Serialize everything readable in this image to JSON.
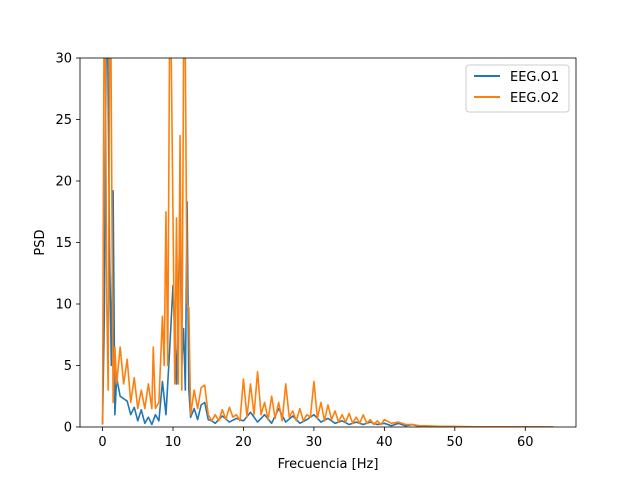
{
  "chart_data": {
    "type": "line",
    "title": "",
    "xlabel": "Frecuencia [Hz]",
    "ylabel": "PSD",
    "xlim": [
      -3.2,
      67.2
    ],
    "ylim": [
      0,
      30
    ],
    "xticks": [
      0,
      10,
      20,
      30,
      40,
      50,
      60
    ],
    "yticks": [
      0,
      5,
      10,
      15,
      20,
      25,
      30
    ],
    "grid": false,
    "legend": {
      "placement": "top-right"
    },
    "series": [
      {
        "name": "EEG.O1",
        "color": "#1f77b4",
        "points": [
          [
            0.0,
            0.2
          ],
          [
            0.25,
            9
          ],
          [
            0.5,
            30
          ],
          [
            0.75,
            30
          ],
          [
            1.0,
            14
          ],
          [
            1.25,
            5
          ],
          [
            1.5,
            19.2
          ],
          [
            1.75,
            1.0
          ],
          [
            2.0,
            4.0
          ],
          [
            2.5,
            2.5
          ],
          [
            3.0,
            2.3
          ],
          [
            3.5,
            2.1
          ],
          [
            4.0,
            1.0
          ],
          [
            4.5,
            1.6
          ],
          [
            5.0,
            0.5
          ],
          [
            5.5,
            1.4
          ],
          [
            6.0,
            0.3
          ],
          [
            6.5,
            0.8
          ],
          [
            7.0,
            0.2
          ],
          [
            7.5,
            1.0
          ],
          [
            8.0,
            0.5
          ],
          [
            8.5,
            3.7
          ],
          [
            9.0,
            1.0
          ],
          [
            9.5,
            6.0
          ],
          [
            10.0,
            11.5
          ],
          [
            10.5,
            3.5
          ],
          [
            11.0,
            17.0
          ],
          [
            11.25,
            5
          ],
          [
            11.5,
            8.0
          ],
          [
            11.75,
            3.0
          ],
          [
            12.0,
            18.3
          ],
          [
            12.25,
            3.0
          ],
          [
            12.5,
            0.8
          ],
          [
            13.0,
            1.5
          ],
          [
            13.5,
            0.6
          ],
          [
            14.0,
            1.8
          ],
          [
            14.5,
            2.0
          ],
          [
            15.0,
            0.6
          ],
          [
            15.5,
            0.5
          ],
          [
            16.0,
            0.3
          ],
          [
            17.0,
            0.9
          ],
          [
            18.0,
            0.4
          ],
          [
            19.0,
            0.7
          ],
          [
            20.0,
            0.5
          ],
          [
            21.0,
            1.2
          ],
          [
            22.0,
            0.4
          ],
          [
            23.0,
            1.0
          ],
          [
            24.0,
            0.3
          ],
          [
            25.0,
            1.5
          ],
          [
            26.0,
            0.4
          ],
          [
            27.0,
            0.9
          ],
          [
            28.0,
            0.3
          ],
          [
            29.0,
            0.6
          ],
          [
            30.0,
            1.0
          ],
          [
            31.0,
            0.4
          ],
          [
            32.0,
            0.7
          ],
          [
            33.0,
            0.3
          ],
          [
            34.0,
            0.5
          ],
          [
            35.0,
            0.2
          ],
          [
            36.0,
            0.4
          ],
          [
            37.0,
            0.2
          ],
          [
            38.0,
            0.4
          ],
          [
            39.0,
            0.2
          ],
          [
            40.0,
            0.3
          ],
          [
            41.0,
            0.1
          ],
          [
            42.0,
            0.3
          ],
          [
            43.0,
            0.1
          ],
          [
            44.0,
            0.2
          ],
          [
            45.0,
            0.05
          ],
          [
            48.0,
            0.03
          ],
          [
            52.0,
            0.02
          ],
          [
            56.0,
            0.01
          ],
          [
            60.0,
            0.01
          ],
          [
            64.0,
            0.0
          ]
        ]
      },
      {
        "name": "EEG.O2",
        "color": "#ff7f0e",
        "points": [
          [
            0.0,
            0.2
          ],
          [
            0.2,
            30
          ],
          [
            0.4,
            30
          ],
          [
            0.6,
            10
          ],
          [
            0.8,
            3
          ],
          [
            1.0,
            30
          ],
          [
            1.2,
            30
          ],
          [
            1.5,
            2.0
          ],
          [
            1.75,
            6.5
          ],
          [
            2.0,
            3.5
          ],
          [
            2.5,
            6.5
          ],
          [
            3.0,
            3.5
          ],
          [
            3.5,
            5.5
          ],
          [
            4.0,
            2.0
          ],
          [
            4.5,
            4.0
          ],
          [
            5.0,
            1.5
          ],
          [
            5.5,
            3.0
          ],
          [
            6.0,
            1.5
          ],
          [
            6.5,
            3.5
          ],
          [
            7.0,
            1.5
          ],
          [
            7.2,
            6.5
          ],
          [
            7.5,
            1.5
          ],
          [
            8.0,
            2.0
          ],
          [
            8.5,
            9.0
          ],
          [
            8.75,
            5
          ],
          [
            9.0,
            17.5
          ],
          [
            9.25,
            5
          ],
          [
            9.5,
            30
          ],
          [
            9.75,
            30
          ],
          [
            10.0,
            17.2
          ],
          [
            10.25,
            3.5
          ],
          [
            10.5,
            17.0
          ],
          [
            10.75,
            3.5
          ],
          [
            11.0,
            23.7
          ],
          [
            11.25,
            3.0
          ],
          [
            11.5,
            30
          ],
          [
            11.75,
            30
          ],
          [
            12.0,
            10.0
          ],
          [
            12.25,
            9.7
          ],
          [
            12.5,
            1.0
          ],
          [
            13.0,
            3.0
          ],
          [
            13.5,
            1.5
          ],
          [
            14.0,
            3.2
          ],
          [
            14.5,
            3.4
          ],
          [
            15.0,
            1.0
          ],
          [
            15.5,
            0.5
          ],
          [
            16.0,
            1.0
          ],
          [
            16.5,
            0.5
          ],
          [
            17.0,
            1.4
          ],
          [
            17.5,
            0.6
          ],
          [
            18.0,
            1.6
          ],
          [
            18.5,
            0.8
          ],
          [
            19.0,
            1.0
          ],
          [
            19.5,
            0.5
          ],
          [
            20.0,
            3.9
          ],
          [
            20.5,
            0.8
          ],
          [
            21.0,
            3.5
          ],
          [
            21.5,
            1.0
          ],
          [
            22.0,
            4.5
          ],
          [
            22.5,
            1.0
          ],
          [
            23.0,
            2.0
          ],
          [
            23.5,
            0.6
          ],
          [
            24.0,
            2.5
          ],
          [
            24.5,
            0.7
          ],
          [
            25.0,
            2.0
          ],
          [
            25.5,
            0.5
          ],
          [
            26.0,
            3.5
          ],
          [
            26.5,
            0.8
          ],
          [
            27.0,
            1.3
          ],
          [
            27.5,
            0.5
          ],
          [
            28.0,
            1.5
          ],
          [
            28.5,
            0.5
          ],
          [
            29.0,
            1.0
          ],
          [
            29.5,
            0.8
          ],
          [
            30.0,
            3.7
          ],
          [
            30.5,
            0.7
          ],
          [
            31.0,
            2.0
          ],
          [
            31.5,
            0.5
          ],
          [
            32.0,
            1.8
          ],
          [
            32.5,
            0.6
          ],
          [
            33.0,
            1.3
          ],
          [
            33.5,
            0.4
          ],
          [
            34.0,
            1.0
          ],
          [
            34.5,
            0.4
          ],
          [
            35.0,
            1.1
          ],
          [
            35.5,
            0.3
          ],
          [
            36.0,
            0.8
          ],
          [
            36.5,
            0.3
          ],
          [
            37.0,
            1.0
          ],
          [
            37.5,
            0.3
          ],
          [
            38.0,
            0.6
          ],
          [
            38.5,
            0.2
          ],
          [
            39.0,
            0.5
          ],
          [
            39.5,
            0.2
          ],
          [
            40.0,
            0.6
          ],
          [
            41.0,
            0.3
          ],
          [
            42.0,
            0.4
          ],
          [
            43.0,
            0.2
          ],
          [
            44.0,
            0.2
          ],
          [
            45.0,
            0.1
          ],
          [
            46.0,
            0.1
          ],
          [
            48.0,
            0.05
          ],
          [
            50.0,
            0.05
          ],
          [
            53.0,
            0.02
          ],
          [
            56.0,
            0.02
          ],
          [
            60.0,
            0.01
          ],
          [
            64.0,
            0.0
          ]
        ]
      }
    ]
  }
}
